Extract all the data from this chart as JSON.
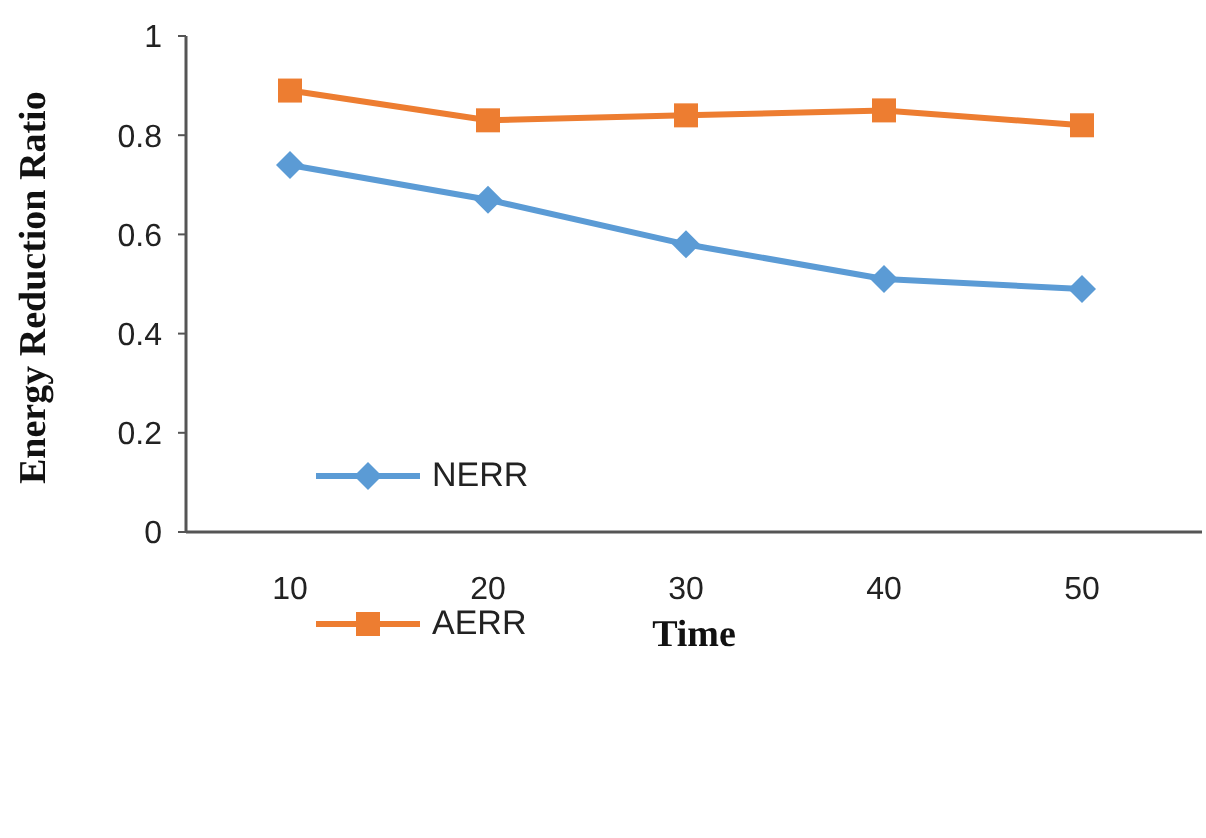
{
  "chart_data": {
    "type": "line",
    "xlabel": "Time",
    "ylabel": "Energy Reduction Ratio",
    "categories": [
      "10",
      "20",
      "30",
      "40",
      "50"
    ],
    "series": [
      {
        "name": "NERR",
        "color": "#5b9bd5",
        "marker": "diamond",
        "values": [
          0.74,
          0.67,
          0.58,
          0.51,
          0.49
        ]
      },
      {
        "name": "AERR",
        "color": "#ed7d31",
        "marker": "square",
        "values": [
          0.89,
          0.83,
          0.84,
          0.85,
          0.82
        ]
      }
    ],
    "ylim": [
      0,
      1
    ],
    "yticks": [
      0,
      0.2,
      0.4,
      0.6,
      0.8,
      1
    ],
    "grid": false,
    "legend": "bottom left"
  }
}
